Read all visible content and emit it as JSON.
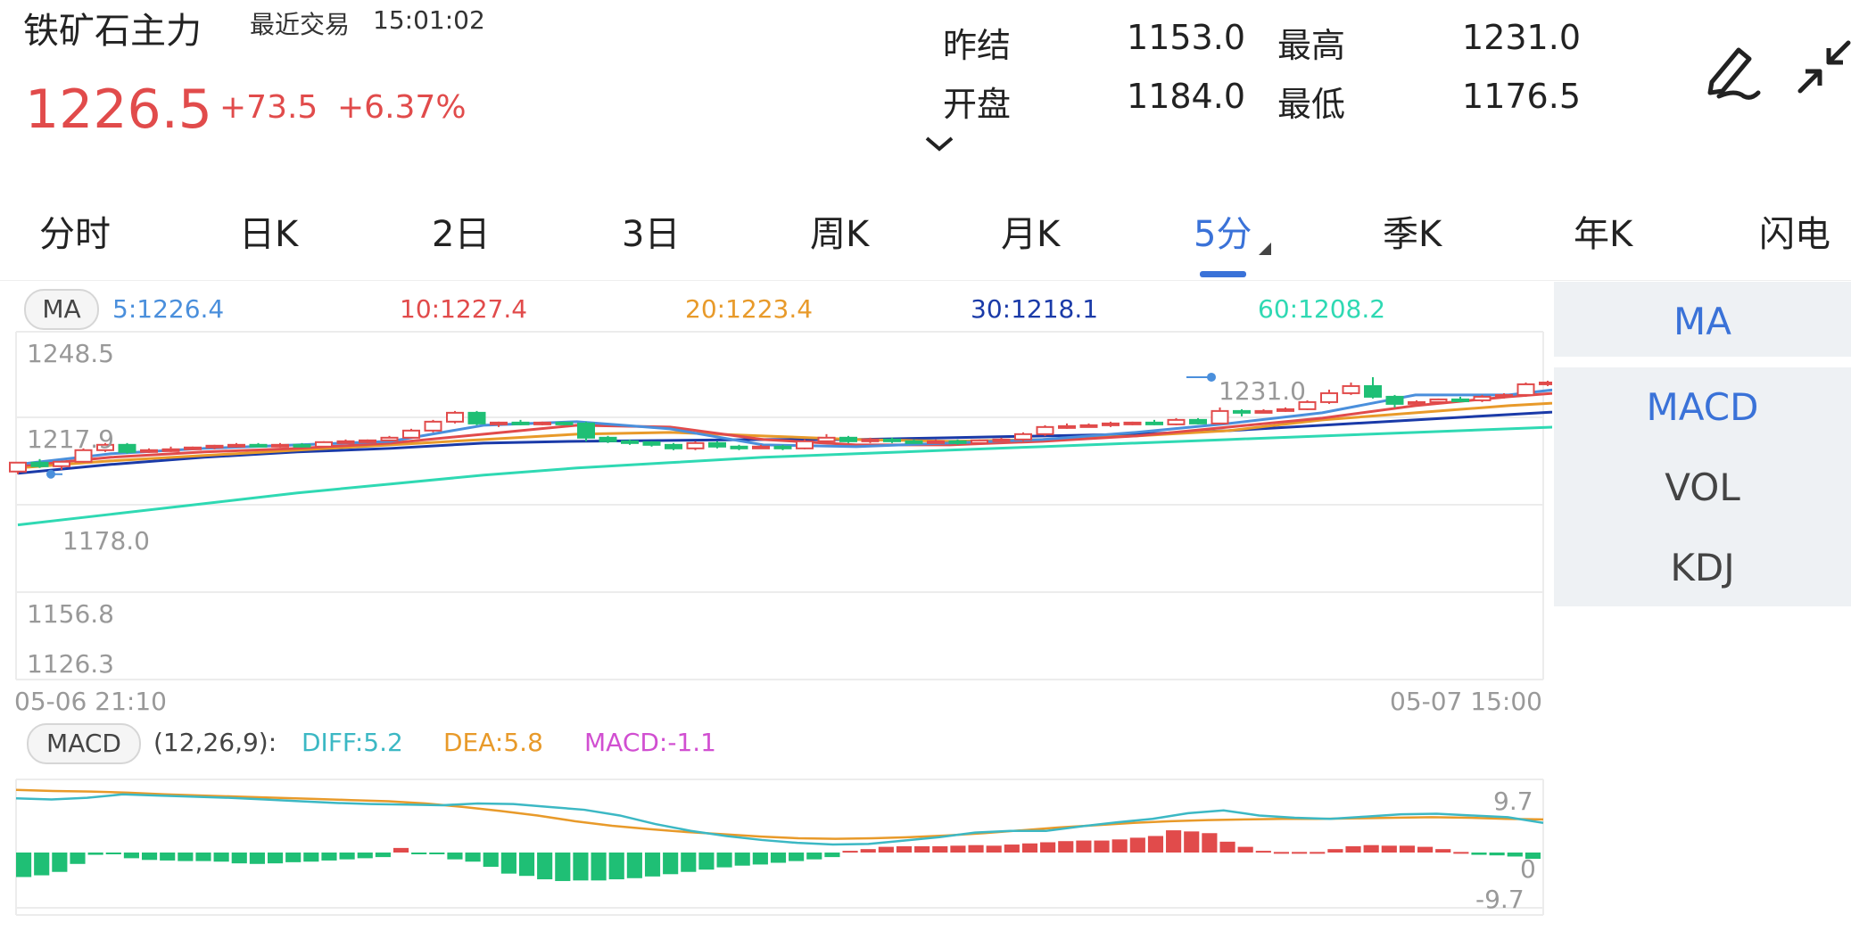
{
  "header": {
    "title": "铁矿石主力",
    "last_trade_label": "最近交易",
    "last_trade_time": "15:01:02",
    "price": "1226.5",
    "change": "+73.5",
    "change_pct": "+6.37%",
    "stats": [
      {
        "label": "昨结",
        "value": "1153.0"
      },
      {
        "label": "最高",
        "value": "1231.0"
      },
      {
        "label": "开盘",
        "value": "1184.0"
      },
      {
        "label": "最低",
        "value": "1176.5"
      }
    ],
    "icons": {
      "edit": "pen-icon",
      "shrink": "shrink-arrows-icon",
      "expand": "chevron-down-icon"
    }
  },
  "tabs": [
    {
      "label": "分时",
      "active": false
    },
    {
      "label": "日K",
      "active": false
    },
    {
      "label": "2日",
      "active": false
    },
    {
      "label": "3日",
      "active": false
    },
    {
      "label": "周K",
      "active": false
    },
    {
      "label": "月K",
      "active": false
    },
    {
      "label": "5分",
      "active": true
    },
    {
      "label": "季K",
      "active": false
    },
    {
      "label": "年K",
      "active": false
    },
    {
      "label": "闪电",
      "active": false
    }
  ],
  "ma_legend": {
    "label": "MA",
    "items": [
      {
        "text": "5:1226.4",
        "color": "#4a8fdc"
      },
      {
        "text": "10:1227.4",
        "color": "#e14b4b"
      },
      {
        "text": "20:1223.4",
        "color": "#e89a2a"
      },
      {
        "text": "30:1218.1",
        "color": "#1a3aa8"
      },
      {
        "text": "60:1208.2",
        "color": "#2fd9b3"
      }
    ]
  },
  "main_chart": {
    "y_labels": [
      "1248.5",
      "1217.9",
      "1156.8",
      "1126.3"
    ],
    "low_marker": "1178.0",
    "high_marker": "1231.0",
    "x_start": "05-06 21:10",
    "x_end": "05-07 15:00",
    "colors": {
      "up": "#e14b4b",
      "down": "#1fbf75"
    }
  },
  "macd_legend": {
    "label": "MACD",
    "params": "(12,26,9):",
    "diff": "DIFF:5.2",
    "dea": "DEA:5.8",
    "macd": "MACD:-1.1",
    "colors": {
      "diff": "#3cb8c4",
      "dea": "#e89a2a",
      "macd": "#d14fd1"
    }
  },
  "macd_chart": {
    "y_labels": [
      "9.7",
      "0",
      "-9.7"
    ],
    "histogram": [
      -4.3,
      -4.0,
      -3.4,
      -2.0,
      -0.4,
      -0.2,
      -1.0,
      -1.3,
      -1.4,
      -1.5,
      -1.5,
      -1.6,
      -1.9,
      -2.0,
      -1.9,
      -1.7,
      -1.6,
      -1.4,
      -1.2,
      -1.0,
      -0.8,
      0.8,
      -0.3,
      -0.3,
      -1.2,
      -1.6,
      -2.5,
      -3.7,
      -4.1,
      -4.7,
      -5.0,
      -4.9,
      -4.9,
      -4.7,
      -4.5,
      -4.2,
      -3.8,
      -3.4,
      -3.0,
      -2.6,
      -2.3,
      -2.1,
      -1.8,
      -1.5,
      -1.2,
      -0.8,
      0.3,
      0.6,
      1.0,
      1.1,
      1.1,
      1.1,
      1.2,
      1.3,
      1.2,
      1.4,
      1.6,
      1.8,
      2.0,
      2.1,
      2.1,
      2.3,
      2.6,
      2.9,
      3.9,
      3.7,
      3.4,
      1.9,
      1.0,
      0.3,
      0.1,
      0.1,
      0.1,
      0.6,
      1.1,
      1.3,
      1.2,
      1.2,
      1.0,
      0.6,
      0.1,
      -0.4,
      -0.5,
      -0.7,
      -1.1
    ]
  },
  "side_panel": [
    "MA",
    "MACD",
    "VOL",
    "KDJ"
  ]
}
